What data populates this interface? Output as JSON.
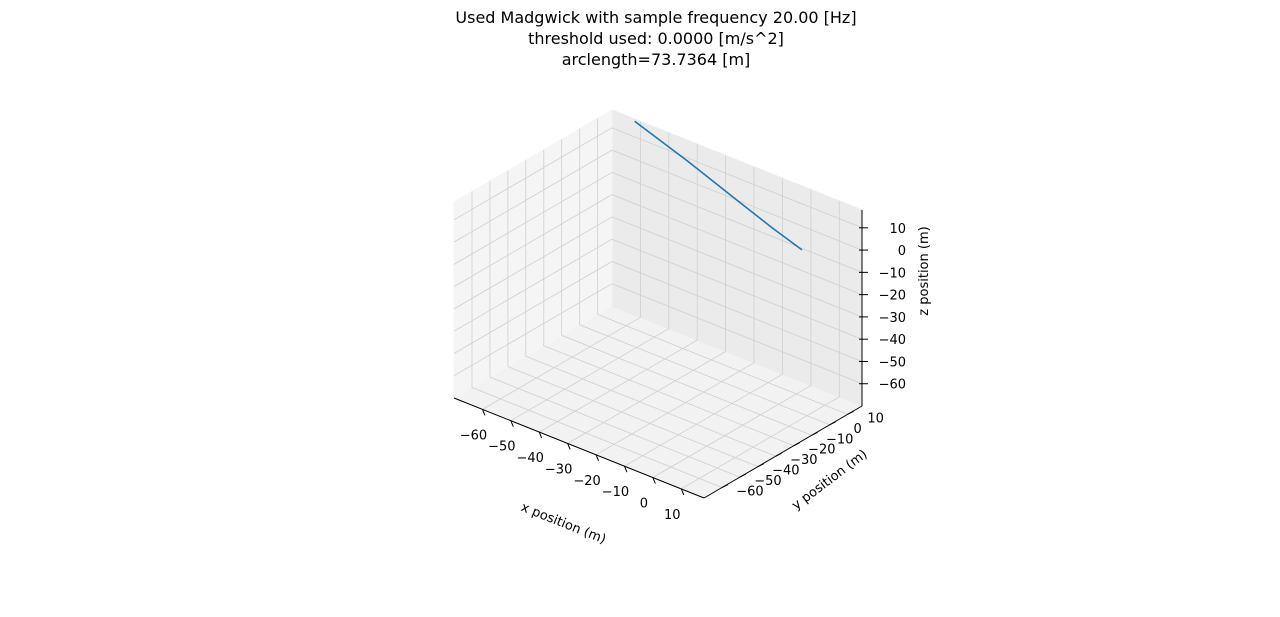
{
  "chart_data": {
    "type": "line",
    "projection": "3d",
    "title_lines": [
      "Used Madgwick with sample frequency 20.00 [Hz]",
      "threshold used: 0.0000 [m/s^2]",
      "arclength=73.7364 [m]"
    ],
    "xlabel": "x position (m)",
    "ylabel": "y position (m)",
    "zlabel": "z position (m)",
    "xlim": [
      -70,
      18
    ],
    "ylim": [
      -70,
      18
    ],
    "zlim": [
      -70,
      18
    ],
    "xticks": [
      -60,
      -50,
      -40,
      -30,
      -20,
      -10,
      0,
      10
    ],
    "yticks": [
      -60,
      -50,
      -40,
      -30,
      -20,
      -10,
      0,
      10
    ],
    "zticks": [
      -60,
      -50,
      -40,
      -30,
      -20,
      -10,
      0,
      10
    ],
    "grid": true,
    "series": [
      {
        "color": "#1f77b4",
        "points": [
          {
            "x": -62,
            "y": 18,
            "z": 17
          },
          {
            "x": -40,
            "y": 13,
            "z": 12.5
          },
          {
            "x": -20,
            "y": 8,
            "z": 8
          },
          {
            "x": -5,
            "y": 4.5,
            "z": 4.5
          },
          {
            "x": 7,
            "y": 2,
            "z": 2
          }
        ]
      }
    ]
  }
}
